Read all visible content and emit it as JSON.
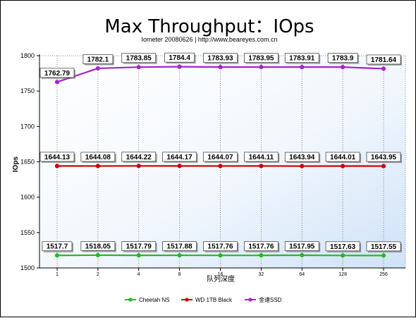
{
  "chart_data": {
    "type": "line",
    "title": "Max Throughput：IOps",
    "subtitle": "Iometer 20080626 | http://www.beareyes.com.cn",
    "xlabel": "队列深度",
    "ylabel": "IOps",
    "x": [
      "1",
      "2",
      "4",
      "8",
      "16",
      "32",
      "64",
      "128",
      "256"
    ],
    "ylim": [
      1500,
      1800
    ],
    "yticks": [
      "1500",
      "1550",
      "1600",
      "1650",
      "1700",
      "1750",
      "1800"
    ],
    "grid": {
      "x": true,
      "y": false
    },
    "legend": "bottom",
    "series": [
      {
        "name": "Cheetah NS",
        "color": "#22bb22",
        "values": [
          1517.7,
          1518.05,
          1517.79,
          1517.88,
          1517.76,
          1517.76,
          1517.95,
          1517.63,
          1517.55
        ],
        "labels": [
          "1517.7",
          "1518.05",
          "1517.79",
          "1517.88",
          "1517.76",
          "1517.76",
          "1517.95",
          "1517.63",
          "1517.55"
        ]
      },
      {
        "name": "WD 1TB Black",
        "color": "#cc0000",
        "values": [
          1644.13,
          1644.08,
          1644.22,
          1644.17,
          1644.07,
          1644.11,
          1643.94,
          1644.01,
          1643.95
        ],
        "labels": [
          "1644.13",
          "1644.08",
          "1644.22",
          "1644.17",
          "1644.07",
          "1644.11",
          "1643.94",
          "1644.01",
          "1643.95"
        ]
      },
      {
        "name": "金速SSD",
        "color": "#aa22cc",
        "values": [
          1762.79,
          1782.1,
          1783.85,
          1784.4,
          1783.93,
          1783.95,
          1783.91,
          1783.9,
          1781.64
        ],
        "labels": [
          "1762.79",
          "1782.1",
          "1783.85",
          "1784.4",
          "1783.93",
          "1783.95",
          "1783.91",
          "1783.9",
          "1781.64"
        ]
      }
    ]
  }
}
